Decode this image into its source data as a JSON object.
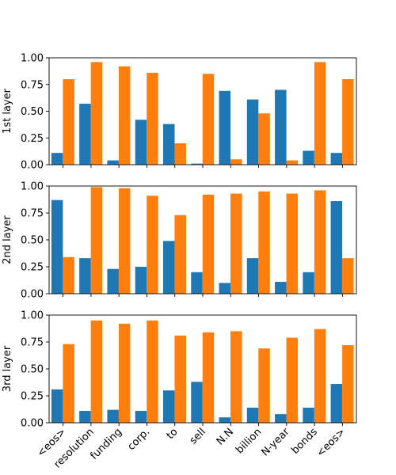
{
  "chart_data": {
    "type": "bar",
    "categories": [
      "<eos>",
      "resolution",
      "funding",
      "corp.",
      "to",
      "sell",
      "N.N",
      "billion",
      "N-year",
      "bonds",
      "<eos>"
    ],
    "yticks": [
      "0.00",
      "0.25",
      "0.50",
      "0.75",
      "1.00"
    ],
    "ylim": [
      0,
      1
    ],
    "colors": [
      "#1f77b4",
      "#ff7f0e"
    ],
    "grid": false,
    "panels": [
      {
        "ylabel": "1st layer",
        "series": [
          {
            "values": [
              0.11,
              0.57,
              0.04,
              0.42,
              0.38,
              0.01,
              0.69,
              0.61,
              0.7,
              0.13,
              0.11
            ]
          },
          {
            "values": [
              0.8,
              0.96,
              0.92,
              0.86,
              0.2,
              0.85,
              0.05,
              0.48,
              0.04,
              0.96,
              0.8
            ]
          }
        ]
      },
      {
        "ylabel": "2nd layer",
        "series": [
          {
            "values": [
              0.87,
              0.33,
              0.23,
              0.25,
              0.49,
              0.2,
              0.1,
              0.33,
              0.11,
              0.2,
              0.86
            ]
          },
          {
            "values": [
              0.34,
              0.99,
              0.98,
              0.91,
              0.73,
              0.92,
              0.93,
              0.95,
              0.93,
              0.96,
              0.33
            ]
          }
        ]
      },
      {
        "ylabel": "3rd layer",
        "series": [
          {
            "values": [
              0.31,
              0.11,
              0.12,
              0.11,
              0.3,
              0.38,
              0.05,
              0.14,
              0.08,
              0.14,
              0.36
            ]
          },
          {
            "values": [
              0.73,
              0.95,
              0.92,
              0.95,
              0.81,
              0.84,
              0.85,
              0.69,
              0.79,
              0.87,
              0.72
            ]
          }
        ]
      }
    ]
  }
}
